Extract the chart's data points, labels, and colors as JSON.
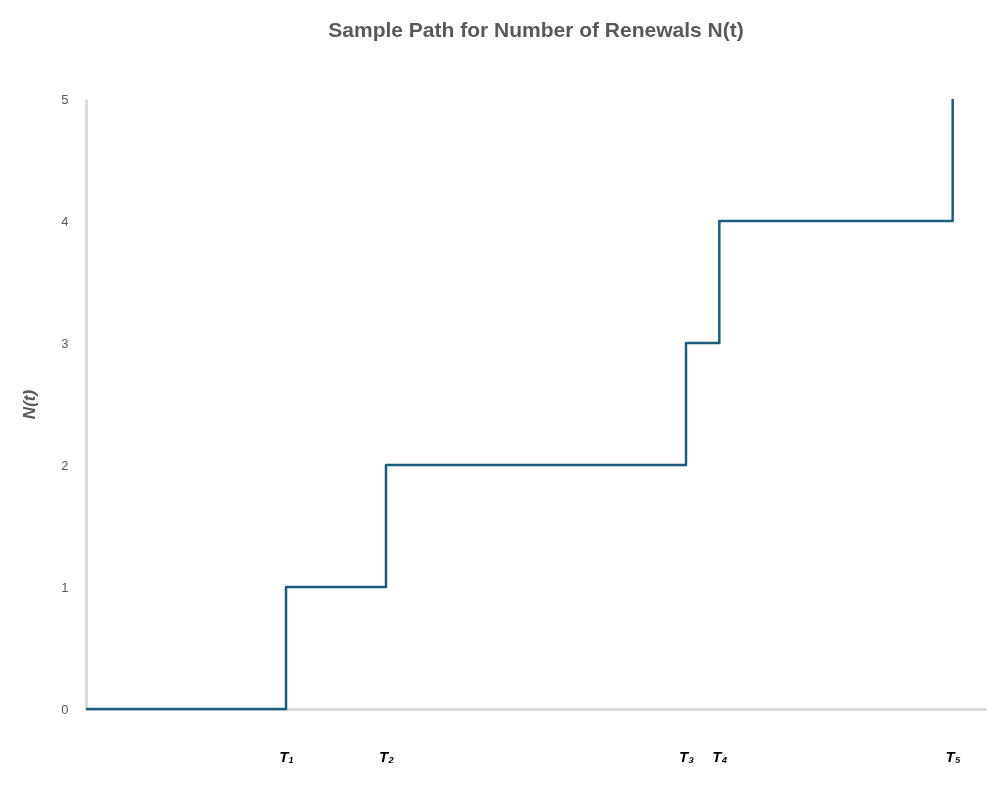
{
  "chart_data": {
    "type": "step",
    "title": "Sample Path for Number of Renewals N(t)",
    "ylabel": "N(t)",
    "categories": [
      null,
      null,
      null,
      null,
      null,
      null,
      "T₁",
      null,
      null,
      "T₂",
      null,
      null,
      null,
      null,
      null,
      null,
      null,
      null,
      "T₃",
      "T₄",
      null,
      null,
      null,
      null,
      null,
      null,
      "T₅",
      null
    ],
    "series": [
      {
        "color": "#1f5b7a",
        "values": [
          0,
          0,
          0,
          0,
          0,
          0,
          1,
          1,
          1,
          2,
          2,
          2,
          2,
          2,
          2,
          2,
          2,
          2,
          3,
          4,
          4,
          4,
          4,
          4,
          4,
          4,
          5,
          null
        ]
      }
    ],
    "ylim": [
      0,
      5
    ],
    "yticks": [
      0,
      1,
      2,
      3,
      4,
      5
    ],
    "grid": false,
    "marker": "none",
    "line_style": "solid"
  }
}
